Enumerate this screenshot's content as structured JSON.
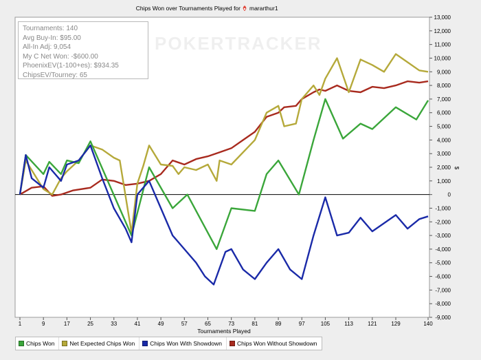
{
  "chart_data": {
    "type": "line",
    "title": "Chips Won over Tournaments Played for",
    "player": "mararthur1",
    "watermark": "POKERTRACKER",
    "xlabel": "Tournaments Played",
    "ylabel": "$",
    "xlim": [
      1,
      140
    ],
    "ylim": [
      -9000,
      13000
    ],
    "x_ticks": [
      1,
      9,
      17,
      25,
      33,
      41,
      49,
      57,
      65,
      73,
      81,
      89,
      97,
      105,
      113,
      121,
      129,
      140
    ],
    "y_ticks": [
      -9000,
      -8000,
      -7000,
      -6000,
      -5000,
      -4000,
      -3000,
      -2000,
      -1000,
      0,
      1000,
      2000,
      3000,
      4000,
      5000,
      6000,
      7000,
      8000,
      9000,
      10000,
      11000,
      12000,
      13000
    ],
    "y_tick_labels": [
      "-9,000",
      "-8,000",
      "-7,000",
      "-6,000",
      "-5,000",
      "-4,000",
      "-3,000",
      "-2,000",
      "-1,000",
      "0",
      "1,000",
      "2,000",
      "3,000",
      "4,000",
      "5,000",
      "6,000",
      "7,000",
      "8,000",
      "9,000",
      "10,000",
      "11,000",
      "12,000",
      "13,000"
    ],
    "grid": false,
    "legend_position": "bottom",
    "stats": [
      "Tournaments: 140",
      "Avg Buy-In: $95.00",
      "All-In Adj: 9,054",
      "My C Net Won: -$600.00",
      "PhoenixEV(1-100+es): $934.35",
      "ChipsEV/Tourney: 65"
    ],
    "series": [
      {
        "name": "Chips Won",
        "color": "#3aa63a",
        "points": [
          [
            1,
            0
          ],
          [
            3,
            2900
          ],
          [
            9,
            1500
          ],
          [
            11,
            2400
          ],
          [
            15,
            1500
          ],
          [
            17,
            2500
          ],
          [
            21,
            2300
          ],
          [
            25,
            3900
          ],
          [
            39,
            -3000
          ],
          [
            45,
            2000
          ],
          [
            53,
            -1000
          ],
          [
            58,
            0
          ],
          [
            68,
            -4000
          ],
          [
            73,
            -1000
          ],
          [
            81,
            -1200
          ],
          [
            85,
            1500
          ],
          [
            89,
            2500
          ],
          [
            96,
            0
          ],
          [
            101,
            4000
          ],
          [
            105,
            7000
          ],
          [
            111,
            4100
          ],
          [
            117,
            5200
          ],
          [
            121,
            4800
          ],
          [
            129,
            6400
          ],
          [
            136,
            5500
          ],
          [
            140,
            6900
          ]
        ]
      },
      {
        "name": "Net Expected Chips Won",
        "color": "#b5a93a",
        "points": [
          [
            1,
            0
          ],
          [
            3,
            2500
          ],
          [
            9,
            400
          ],
          [
            12,
            0
          ],
          [
            15,
            1200
          ],
          [
            17,
            1700
          ],
          [
            21,
            2500
          ],
          [
            25,
            3600
          ],
          [
            29,
            3300
          ],
          [
            33,
            2700
          ],
          [
            35,
            2500
          ],
          [
            39,
            -2800
          ],
          [
            41,
            800
          ],
          [
            43,
            2100
          ],
          [
            45,
            3600
          ],
          [
            49,
            2200
          ],
          [
            53,
            2100
          ],
          [
            55,
            1500
          ],
          [
            57,
            2000
          ],
          [
            61,
            1800
          ],
          [
            65,
            2200
          ],
          [
            68,
            1000
          ],
          [
            69,
            2500
          ],
          [
            73,
            2200
          ],
          [
            81,
            4000
          ],
          [
            85,
            6000
          ],
          [
            89,
            6500
          ],
          [
            91,
            5000
          ],
          [
            95,
            5200
          ],
          [
            97,
            7000
          ],
          [
            101,
            8000
          ],
          [
            103,
            7300
          ],
          [
            105,
            8500
          ],
          [
            109,
            10000
          ],
          [
            113,
            7500
          ],
          [
            117,
            9900
          ],
          [
            121,
            9500
          ],
          [
            125,
            9000
          ],
          [
            129,
            10300
          ],
          [
            133,
            9700
          ],
          [
            137,
            9100
          ],
          [
            140,
            9000
          ]
        ]
      },
      {
        "name": "Chips Won With Showdown",
        "color": "#1a2aa8",
        "points": [
          [
            1,
            0
          ],
          [
            3,
            2900
          ],
          [
            5,
            1200
          ],
          [
            9,
            500
          ],
          [
            11,
            2000
          ],
          [
            15,
            1000
          ],
          [
            17,
            2200
          ],
          [
            21,
            2500
          ],
          [
            25,
            3600
          ],
          [
            29,
            1200
          ],
          [
            33,
            -1000
          ],
          [
            37,
            -2500
          ],
          [
            39,
            -3500
          ],
          [
            41,
            0
          ],
          [
            45,
            1000
          ],
          [
            49,
            -1000
          ],
          [
            53,
            -3000
          ],
          [
            57,
            -4000
          ],
          [
            61,
            -5000
          ],
          [
            64,
            -6000
          ],
          [
            67,
            -6600
          ],
          [
            71,
            -4200
          ],
          [
            73,
            -4000
          ],
          [
            77,
            -5500
          ],
          [
            81,
            -6200
          ],
          [
            85,
            -5000
          ],
          [
            89,
            -4000
          ],
          [
            93,
            -5500
          ],
          [
            97,
            -6200
          ],
          [
            101,
            -3000
          ],
          [
            105,
            -200
          ],
          [
            109,
            -3000
          ],
          [
            113,
            -2800
          ],
          [
            117,
            -1700
          ],
          [
            121,
            -2700
          ],
          [
            129,
            -1500
          ],
          [
            133,
            -2500
          ],
          [
            137,
            -1800
          ],
          [
            140,
            -1600
          ]
        ]
      },
      {
        "name": "Chips Won Without Showdown",
        "color": "#a82a1e",
        "points": [
          [
            1,
            0
          ],
          [
            5,
            500
          ],
          [
            9,
            600
          ],
          [
            12,
            -100
          ],
          [
            15,
            0
          ],
          [
            19,
            300
          ],
          [
            25,
            500
          ],
          [
            29,
            1100
          ],
          [
            33,
            1000
          ],
          [
            37,
            700
          ],
          [
            41,
            800
          ],
          [
            45,
            1000
          ],
          [
            49,
            1500
          ],
          [
            53,
            2500
          ],
          [
            57,
            2200
          ],
          [
            61,
            2600
          ],
          [
            65,
            2800
          ],
          [
            69,
            3100
          ],
          [
            73,
            3400
          ],
          [
            77,
            4000
          ],
          [
            81,
            4600
          ],
          [
            85,
            5700
          ],
          [
            89,
            6000
          ],
          [
            91,
            6400
          ],
          [
            95,
            6500
          ],
          [
            97,
            7000
          ],
          [
            101,
            7500
          ],
          [
            103,
            7700
          ],
          [
            105,
            7600
          ],
          [
            109,
            8000
          ],
          [
            113,
            7600
          ],
          [
            117,
            7500
          ],
          [
            121,
            7900
          ],
          [
            125,
            7800
          ],
          [
            129,
            8000
          ],
          [
            133,
            8300
          ],
          [
            137,
            8200
          ],
          [
            140,
            8300
          ]
        ]
      }
    ]
  }
}
